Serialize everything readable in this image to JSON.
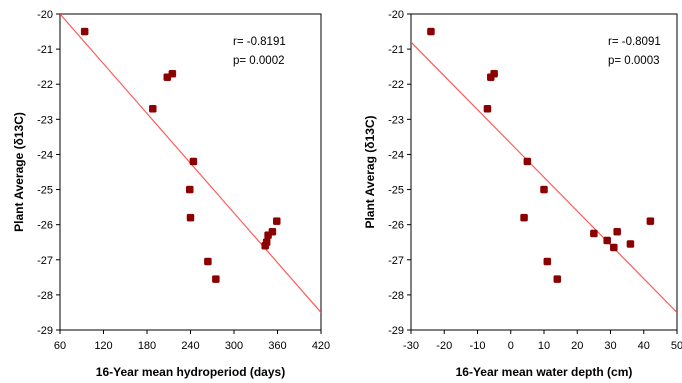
{
  "colors": {
    "point": "#8b0000",
    "regression_line": "#ff5a5a",
    "axis": "#000000",
    "background": "#ffffff"
  },
  "chart_data": [
    {
      "type": "scatter",
      "title": "",
      "xlabel": "16-Year mean hydroperiod (days)",
      "ylabel": "Plant Average (δ13C)",
      "xlim": [
        60,
        420
      ],
      "ylim": [
        -29,
        -20
      ],
      "xticks": [
        60,
        120,
        180,
        240,
        300,
        360,
        420
      ],
      "yticks": [
        -20,
        -21,
        -22,
        -23,
        -24,
        -25,
        -26,
        -27,
        -28,
        -29
      ],
      "grid": false,
      "legend": "none",
      "stats": {
        "r_label": "r= -0.8191",
        "p_label": "p= 0.0002"
      },
      "regression": {
        "x": [
          60,
          420
        ],
        "y": [
          -20.0,
          -28.5
        ]
      },
      "points": [
        {
          "x": 94,
          "y": -20.5
        },
        {
          "x": 208,
          "y": -21.8
        },
        {
          "x": 215,
          "y": -21.7
        },
        {
          "x": 188,
          "y": -22.7
        },
        {
          "x": 244,
          "y": -24.2
        },
        {
          "x": 239,
          "y": -25.0
        },
        {
          "x": 240,
          "y": -25.8
        },
        {
          "x": 359,
          "y": -25.9
        },
        {
          "x": 353,
          "y": -26.2
        },
        {
          "x": 347,
          "y": -26.3
        },
        {
          "x": 345,
          "y": -26.5
        },
        {
          "x": 343,
          "y": -26.6
        },
        {
          "x": 264,
          "y": -27.05
        },
        {
          "x": 275,
          "y": -27.55
        }
      ]
    },
    {
      "type": "scatter",
      "title": "",
      "xlabel": "16-Year mean water depth (cm)",
      "ylabel": "Plant Averag (δ13C)",
      "xlim": [
        -30,
        50
      ],
      "ylim": [
        -29,
        -20
      ],
      "xticks": [
        -30,
        -20,
        -10,
        0,
        10,
        20,
        30,
        40,
        50
      ],
      "yticks": [
        -20,
        -21,
        -22,
        -23,
        -24,
        -25,
        -26,
        -27,
        -28,
        -29
      ],
      "grid": false,
      "legend": "none",
      "stats": {
        "r_label": "r= -0.8091",
        "p_label": "p= 0.0003"
      },
      "regression": {
        "x": [
          -30,
          50
        ],
        "y": [
          -20.8,
          -28.5
        ]
      },
      "points": [
        {
          "x": -24,
          "y": -20.5
        },
        {
          "x": -6,
          "y": -21.8
        },
        {
          "x": -5,
          "y": -21.7
        },
        {
          "x": -7,
          "y": -22.7
        },
        {
          "x": 5,
          "y": -24.2
        },
        {
          "x": 10,
          "y": -25.0
        },
        {
          "x": 4,
          "y": -25.8
        },
        {
          "x": 25,
          "y": -26.25
        },
        {
          "x": 32,
          "y": -26.2
        },
        {
          "x": 29,
          "y": -26.45
        },
        {
          "x": 31,
          "y": -26.65
        },
        {
          "x": 36,
          "y": -26.55
        },
        {
          "x": 42,
          "y": -25.9
        },
        {
          "x": 11,
          "y": -27.05
        },
        {
          "x": 14,
          "y": -27.55
        }
      ]
    }
  ]
}
